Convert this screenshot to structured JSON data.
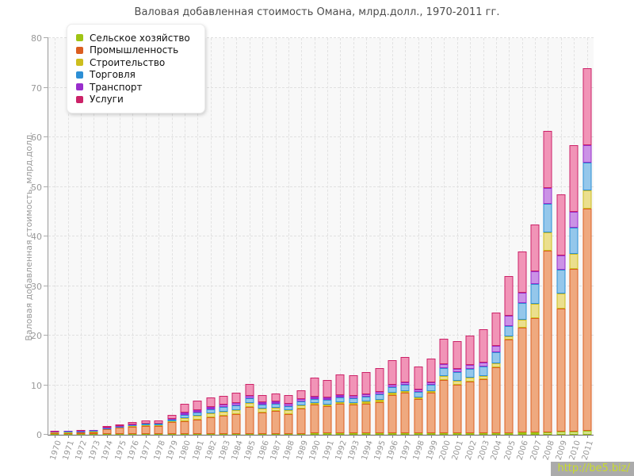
{
  "title": "Валовая добавленная стоимость Омана, млрд.долл., 1970-2011 гг.",
  "watermark": "http://be5.biz/",
  "y_axis": {
    "title": "Валовая добавленная стоимость, млрд.долл.",
    "ticks": [
      0,
      10,
      20,
      30,
      40,
      50,
      60,
      70,
      80
    ]
  },
  "chart_data": {
    "type": "bar",
    "stacked": true,
    "title": "Валовая добавленная стоимость Омана, млрд.долл., 1970-2011 гг.",
    "ylabel": "Валовая добавленная стоимость, млрд.долл.",
    "xlabel": "",
    "ylim": [
      0,
      80
    ],
    "grid": "dashed",
    "legend_position": "top-left",
    "categories": [
      "1970",
      "1971",
      "1972",
      "1973",
      "1974",
      "1975",
      "1976",
      "1977",
      "1978",
      "1979",
      "1980",
      "1981",
      "1982",
      "1983",
      "1984",
      "1985",
      "1986",
      "1987",
      "1988",
      "1989",
      "1990",
      "1991",
      "1992",
      "1993",
      "1994",
      "1995",
      "1996",
      "1997",
      "1998",
      "1999",
      "2000",
      "2001",
      "2002",
      "2003",
      "2004",
      "2005",
      "2006",
      "2007",
      "2008",
      "2009",
      "2010",
      "2011"
    ],
    "series": [
      {
        "name": "Сельское хозяйство",
        "color": "#9FC414",
        "fill": "#D4E38E",
        "values": [
          0.04,
          0.04,
          0.04,
          0.04,
          0.05,
          0.05,
          0.06,
          0.07,
          0.08,
          0.1,
          0.15,
          0.16,
          0.17,
          0.18,
          0.19,
          0.2,
          0.21,
          0.22,
          0.23,
          0.24,
          0.25,
          0.26,
          0.27,
          0.27,
          0.28,
          0.3,
          0.3,
          0.31,
          0.32,
          0.32,
          0.33,
          0.34,
          0.35,
          0.37,
          0.38,
          0.4,
          0.43,
          0.47,
          0.55,
          0.65,
          0.72,
          0.8
        ]
      },
      {
        "name": "Промышленность",
        "color": "#DB5E20",
        "fill": "#EFA97F",
        "values": [
          0.15,
          0.22,
          0.28,
          0.38,
          0.93,
          1.24,
          1.55,
          1.67,
          1.65,
          2.45,
          2.56,
          2.93,
          3.41,
          3.63,
          4.05,
          5.33,
          4.2,
          4.55,
          4.0,
          5.0,
          5.81,
          5.44,
          5.92,
          5.76,
          6.03,
          6.29,
          7.68,
          8.11,
          6.83,
          8.11,
          10.7,
          9.81,
          10.45,
          10.83,
          13.3,
          18.8,
          21.2,
          23.05,
          36.55,
          24.85,
          32.65,
          44.75
        ]
      },
      {
        "name": "Строительство",
        "color": "#CDBE1E",
        "fill": "#EBDF8D",
        "values": [
          0.01,
          0.01,
          0.02,
          0.02,
          0.05,
          0.1,
          0.15,
          0.18,
          0.18,
          0.2,
          0.64,
          0.69,
          0.75,
          0.8,
          0.75,
          0.91,
          0.8,
          0.7,
          0.7,
          0.64,
          0.37,
          0.43,
          0.43,
          0.43,
          0.43,
          0.43,
          0.43,
          0.43,
          0.37,
          0.43,
          0.8,
          0.69,
          0.69,
          0.64,
          0.7,
          0.7,
          1.6,
          2.85,
          3.7,
          3.0,
          3.1,
          3.7
        ]
      },
      {
        "name": "Торговля",
        "color": "#2D8FD5",
        "fill": "#94C7EB",
        "values": [
          0.02,
          0.03,
          0.04,
          0.05,
          0.08,
          0.12,
          0.16,
          0.2,
          0.22,
          0.3,
          0.7,
          0.75,
          0.85,
          0.96,
          0.96,
          0.91,
          0.85,
          0.75,
          0.85,
          0.8,
          0.8,
          0.91,
          0.91,
          0.91,
          0.96,
          1.07,
          1.12,
          1.17,
          1.12,
          1.23,
          1.6,
          1.82,
          1.87,
          1.92,
          2.3,
          2.1,
          3.3,
          4.0,
          5.8,
          4.8,
          5.3,
          5.6
        ]
      },
      {
        "name": "Транспорт",
        "color": "#992ECC",
        "fill": "#CB92E6",
        "values": [
          0.01,
          0.01,
          0.02,
          0.03,
          0.05,
          0.06,
          0.08,
          0.1,
          0.12,
          0.15,
          0.37,
          0.43,
          0.43,
          0.48,
          0.53,
          0.53,
          0.45,
          0.45,
          0.5,
          0.53,
          0.43,
          0.43,
          0.43,
          0.48,
          0.53,
          0.53,
          0.53,
          0.59,
          0.53,
          0.53,
          0.8,
          0.69,
          0.69,
          0.75,
          1.3,
          2.0,
          2.1,
          2.65,
          3.2,
          2.9,
          3.2,
          3.5
        ]
      },
      {
        "name": "Услуги",
        "color": "#CC2268",
        "fill": "#F194B7",
        "values": [
          0.08,
          0.09,
          0.11,
          0.13,
          0.28,
          0.4,
          0.5,
          0.55,
          0.63,
          0.75,
          1.85,
          1.97,
          1.97,
          1.87,
          1.97,
          2.29,
          1.55,
          1.65,
          1.65,
          1.7,
          3.84,
          3.57,
          4.16,
          4.11,
          4.43,
          4.75,
          4.96,
          5.07,
          4.64,
          4.8,
          5.2,
          5.6,
          5.97,
          6.83,
          6.7,
          8.0,
          8.4,
          9.45,
          11.5,
          12.3,
          13.4,
          15.5
        ]
      }
    ]
  }
}
